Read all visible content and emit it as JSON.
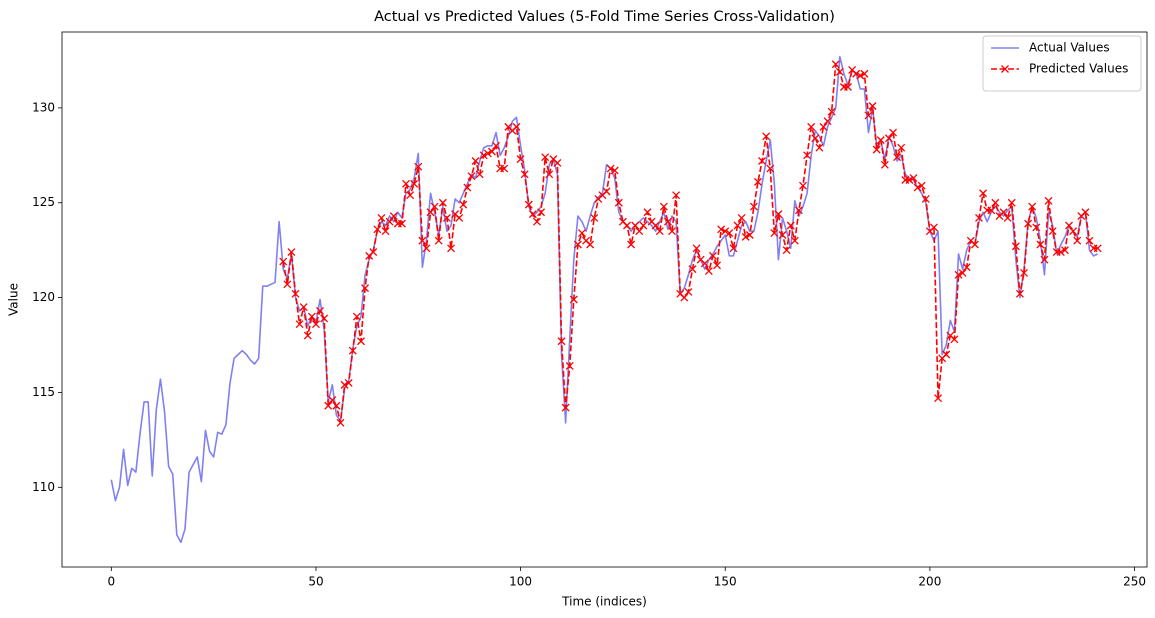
{
  "chart_data": {
    "type": "line",
    "title": "Actual vs Predicted Values (5-Fold Time Series Cross-Validation)",
    "x_label": "Time (indices)",
    "y_label": "Value",
    "xlim": [
      -12.05,
      253.05
    ],
    "ylim": [
      105.8,
      134.0
    ],
    "xticks": [
      0,
      50,
      100,
      150,
      200,
      250
    ],
    "yticks": [
      110,
      115,
      120,
      125,
      130
    ],
    "grid": false,
    "legend": "upper right",
    "x": [
      0,
      1,
      2,
      3,
      4,
      5,
      6,
      7,
      8,
      9,
      10,
      11,
      12,
      13,
      14,
      15,
      16,
      17,
      18,
      19,
      20,
      21,
      22,
      23,
      24,
      25,
      26,
      27,
      28,
      29,
      30,
      31,
      32,
      33,
      34,
      35,
      36,
      37,
      38,
      39,
      40,
      41,
      42,
      43,
      44,
      45,
      46,
      47,
      48,
      49,
      50,
      51,
      52,
      53,
      54,
      55,
      56,
      57,
      58,
      59,
      60,
      61,
      62,
      63,
      64,
      65,
      66,
      67,
      68,
      69,
      70,
      71,
      72,
      73,
      74,
      75,
      76,
      77,
      78,
      79,
      80,
      81,
      82,
      83,
      84,
      85,
      86,
      87,
      88,
      89,
      90,
      91,
      92,
      93,
      94,
      95,
      96,
      97,
      98,
      99,
      100,
      101,
      102,
      103,
      104,
      105,
      106,
      107,
      108,
      109,
      110,
      111,
      112,
      113,
      114,
      115,
      116,
      117,
      118,
      119,
      120,
      121,
      122,
      123,
      124,
      125,
      126,
      127,
      128,
      129,
      130,
      131,
      132,
      133,
      134,
      135,
      136,
      137,
      138,
      139,
      140,
      141,
      142,
      143,
      144,
      145,
      146,
      147,
      148,
      149,
      150,
      151,
      152,
      153,
      154,
      155,
      156,
      157,
      158,
      159,
      160,
      161,
      162,
      163,
      164,
      165,
      166,
      167,
      168,
      169,
      170,
      171,
      172,
      173,
      174,
      175,
      176,
      177,
      178,
      179,
      180,
      181,
      182,
      183,
      184,
      185,
      186,
      187,
      188,
      189,
      190,
      191,
      192,
      193,
      194,
      195,
      196,
      197,
      198,
      199,
      200,
      201,
      202,
      203,
      204,
      205,
      206,
      207,
      208,
      209,
      210,
      211,
      212,
      213,
      214,
      215,
      216,
      217,
      218,
      219,
      220,
      221,
      222,
      223,
      224,
      225,
      226,
      227,
      228,
      229,
      230,
      231,
      232,
      233,
      234,
      235,
      236,
      237,
      238,
      239,
      240,
      241
    ],
    "series": [
      {
        "name": "Actual Values",
        "color": "#8080f2",
        "dashed": false,
        "marker": null,
        "values": [
          110.4,
          109.3,
          110.0,
          112.0,
          110.1,
          111.0,
          110.8,
          112.8,
          114.5,
          114.5,
          110.6,
          114.1,
          115.7,
          114.0,
          111.1,
          110.7,
          107.5,
          107.1,
          107.8,
          110.8,
          111.2,
          111.6,
          110.3,
          113.0,
          111.9,
          111.6,
          112.9,
          112.8,
          113.3,
          115.5,
          116.8,
          117.0,
          117.2,
          117.0,
          116.7,
          116.5,
          116.8,
          120.6,
          120.6,
          120.7,
          120.8,
          124.0,
          121.5,
          121.0,
          122.3,
          120.0,
          119.3,
          119.5,
          118.5,
          119.0,
          118.7,
          119.9,
          118.3,
          114.5,
          115.4,
          113.8,
          113.5,
          115.2,
          115.6,
          117.3,
          118.5,
          119.0,
          121.2,
          122.0,
          122.5,
          123.5,
          124.0,
          123.8,
          124.3,
          124.0,
          124.5,
          124.2,
          125.5,
          125.7,
          126.3,
          127.6,
          121.6,
          123.0,
          125.5,
          124.5,
          123.3,
          124.8,
          123.5,
          123.8,
          125.2,
          125.0,
          125.5,
          126.0,
          126.5,
          126.3,
          127.2,
          127.9,
          128.0,
          128.0,
          128.7,
          127.5,
          127.9,
          128.5,
          129.3,
          129.5,
          128.0,
          126.7,
          124.8,
          124.3,
          124.5,
          124.8,
          125.5,
          127.0,
          127.3,
          126.5,
          117.0,
          113.4,
          117.8,
          122.0,
          124.3,
          124.0,
          123.5,
          124.3,
          125.0,
          125.3,
          125.5,
          127.0,
          126.8,
          126.3,
          124.5,
          124.0,
          123.8,
          123.5,
          123.8,
          124.0,
          124.2,
          124.0,
          123.8,
          123.5,
          124.0,
          124.5,
          123.6,
          124.3,
          124.0,
          120.2,
          120.5,
          121.2,
          122.0,
          122.5,
          122.0,
          121.5,
          122.0,
          122.3,
          122.7,
          123.0,
          123.3,
          122.2,
          122.2,
          123.0,
          123.8,
          124.0,
          123.5,
          123.5,
          124.5,
          126.0,
          127.2,
          128.3,
          126.0,
          122.0,
          124.2,
          123.5,
          122.6,
          125.1,
          124.3,
          124.8,
          125.5,
          127.5,
          128.8,
          128.5,
          128.0,
          129.0,
          129.5,
          130.0,
          132.7,
          131.8,
          131.2,
          132.0,
          131.8,
          131.0,
          131.0,
          128.7,
          130.0,
          128.0,
          128.3,
          127.3,
          128.5,
          128.0,
          127.2,
          127.5,
          126.5,
          126.3,
          126.2,
          125.8,
          125.5,
          125.0,
          123.5,
          123.0,
          123.5,
          117.0,
          117.5,
          118.8,
          118.2,
          122.3,
          121.5,
          122.5,
          123.0,
          122.8,
          124.0,
          124.5,
          124.0,
          124.5,
          124.8,
          124.5,
          124.3,
          124.6,
          124.8,
          122.0,
          120.0,
          121.5,
          124.0,
          124.8,
          124.2,
          123.0,
          121.2,
          124.5,
          123.8,
          122.3,
          122.8,
          123.2,
          123.8,
          123.5,
          123.2,
          124.3,
          124.5,
          122.5,
          122.2,
          122.3
        ]
      },
      {
        "name": "Predicted Values",
        "color": "#ff0000",
        "dashed": true,
        "marker": "x",
        "values": [
          null,
          null,
          null,
          null,
          null,
          null,
          null,
          null,
          null,
          null,
          null,
          null,
          null,
          null,
          null,
          null,
          null,
          null,
          null,
          null,
          null,
          null,
          null,
          null,
          null,
          null,
          null,
          null,
          null,
          null,
          null,
          null,
          null,
          null,
          null,
          null,
          null,
          null,
          null,
          null,
          null,
          null,
          121.9,
          120.7,
          122.4,
          120.2,
          118.6,
          119.5,
          118.0,
          119.0,
          118.6,
          119.3,
          118.9,
          114.3,
          114.6,
          114.3,
          113.4,
          115.4,
          115.5,
          117.2,
          119.0,
          117.7,
          120.5,
          122.2,
          122.4,
          123.6,
          124.2,
          123.5,
          124.0,
          124.3,
          123.9,
          123.9,
          126.0,
          125.4,
          126.0,
          126.9,
          123.0,
          122.6,
          124.5,
          124.8,
          123.0,
          125.0,
          124.2,
          122.6,
          124.4,
          124.2,
          124.9,
          125.8,
          126.4,
          127.2,
          126.5,
          127.5,
          127.6,
          127.7,
          128.0,
          126.8,
          126.8,
          129.0,
          128.8,
          129.0,
          127.3,
          126.5,
          124.9,
          124.4,
          124.0,
          124.5,
          127.4,
          126.5,
          127.3,
          127.1,
          117.7,
          114.2,
          116.4,
          119.9,
          122.8,
          123.4,
          123.0,
          122.8,
          124.2,
          125.2,
          125.4,
          125.6,
          126.8,
          126.7,
          125.0,
          124.0,
          123.8,
          122.8,
          123.8,
          123.5,
          123.8,
          124.5,
          124.0,
          123.8,
          123.5,
          124.8,
          124.0,
          123.5,
          125.4,
          120.2,
          120.0,
          120.3,
          121.5,
          122.6,
          122.0,
          121.8,
          121.4,
          122.2,
          121.7,
          123.6,
          123.5,
          123.4,
          122.6,
          123.8,
          124.2,
          123.2,
          123.3,
          124.8,
          126.1,
          127.2,
          128.5,
          126.8,
          123.4,
          124.4,
          123.3,
          122.5,
          123.8,
          123.0,
          124.6,
          125.9,
          127.5,
          129.0,
          128.4,
          127.9,
          129.0,
          129.3,
          129.8,
          132.3,
          131.9,
          131.1,
          131.1,
          132.0,
          131.8,
          131.7,
          131.8,
          129.6,
          130.1,
          127.8,
          128.3,
          127.0,
          128.4,
          128.7,
          127.4,
          127.9,
          126.2,
          126.2,
          126.3,
          125.8,
          125.9,
          125.2,
          123.5,
          123.7,
          114.7,
          116.8,
          117.0,
          118.0,
          117.8,
          121.2,
          121.3,
          121.6,
          123.0,
          122.8,
          124.2,
          125.5,
          124.6,
          124.6,
          125.0,
          124.3,
          124.5,
          124.2,
          125.0,
          122.7,
          120.2,
          121.3,
          123.9,
          124.8,
          123.7,
          122.8,
          122.0,
          125.1,
          123.5,
          122.4,
          122.4,
          122.5,
          123.8,
          123.5,
          123.0,
          124.3,
          124.5,
          123.0,
          122.6,
          122.6
        ]
      }
    ]
  }
}
